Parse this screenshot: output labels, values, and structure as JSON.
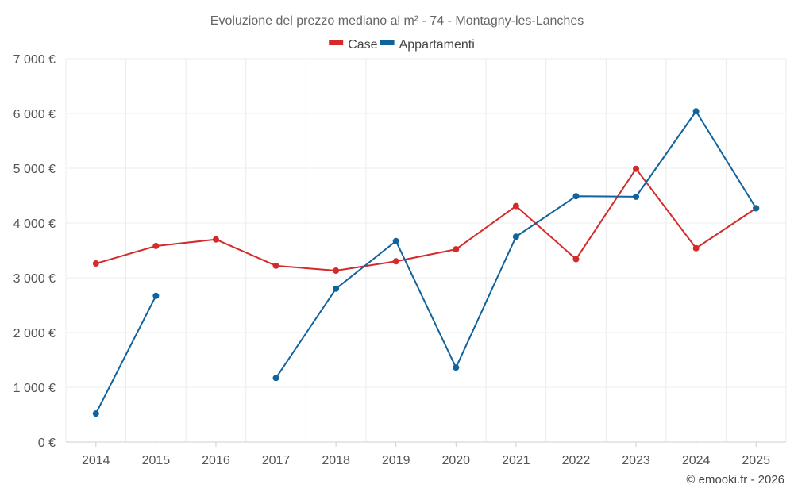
{
  "chart_data": {
    "type": "line",
    "title": "Evoluzione del prezzo mediano al m² - 74 - Montagny-les-Lanches",
    "categories": [
      "2014",
      "2015",
      "2016",
      "2017",
      "2018",
      "2019",
      "2020",
      "2021",
      "2022",
      "2023",
      "2024",
      "2025"
    ],
    "ylim": [
      0,
      7000
    ],
    "yticks": [
      0,
      1000,
      2000,
      3000,
      4000,
      5000,
      6000,
      7000
    ],
    "ytick_labels": [
      "0 €",
      "1 000 €",
      "2 000 €",
      "3 000 €",
      "4 000 €",
      "5 000 €",
      "6 000 €",
      "7 000 €"
    ],
    "legend_position": "top-center",
    "grid": true,
    "series": [
      {
        "name": "Case",
        "color": "#d42a2a",
        "values": [
          3260,
          3580,
          3700,
          3220,
          3130,
          3300,
          3520,
          4310,
          3340,
          4990,
          3540,
          4270
        ]
      },
      {
        "name": "Appartamenti",
        "color": "#10639c",
        "values": [
          520,
          2670,
          null,
          1170,
          2800,
          3670,
          1360,
          3750,
          4490,
          4480,
          6040,
          4270
        ]
      }
    ]
  },
  "credit": "© emooki.fr - 2026"
}
